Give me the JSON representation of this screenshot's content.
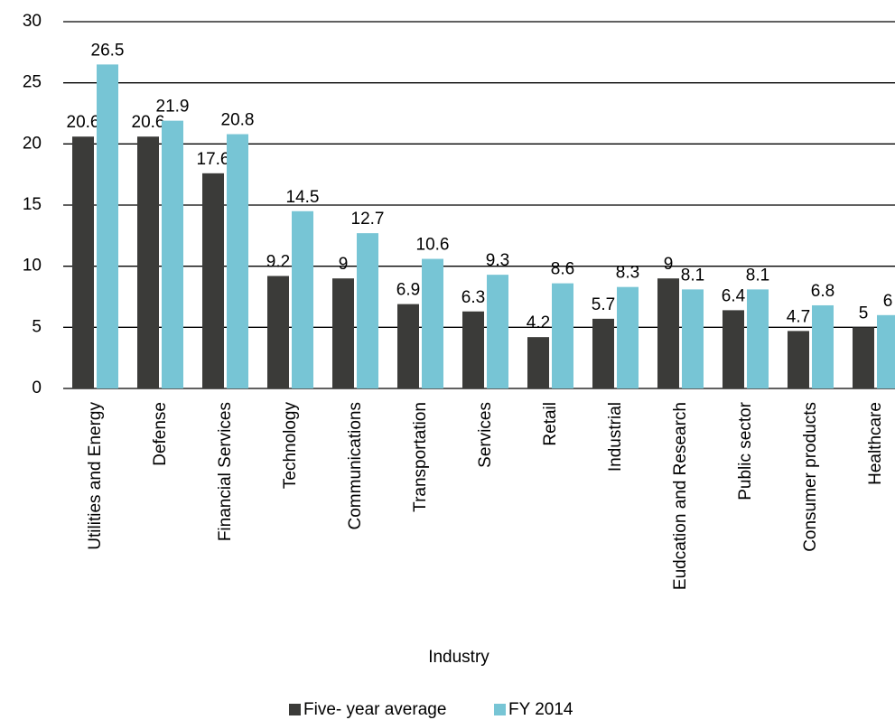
{
  "chart_data": {
    "type": "bar",
    "x_label": "Industry",
    "categories": [
      "Utilities and Energy",
      "Defense",
      "Financial Services",
      "Technology",
      "Communications",
      "Transportation",
      "Services",
      "Retail",
      "Industrial",
      "Eudcation and Research",
      "Public sector",
      "Consumer products",
      "Healthcare"
    ],
    "series": [
      {
        "name": "Five- year average",
        "color": "#3b3b39",
        "values": [
          20.6,
          20.6,
          17.6,
          9.2,
          9,
          6.9,
          6.3,
          4.2,
          5.7,
          9,
          6.4,
          4.7,
          5
        ]
      },
      {
        "name": "FY 2014",
        "color": "#77c5d5",
        "values": [
          26.5,
          21.9,
          20.8,
          14.5,
          12.7,
          10.6,
          9.3,
          8.6,
          8.3,
          8.1,
          8.1,
          6.8,
          6
        ]
      }
    ],
    "ylim": [
      0,
      30
    ],
    "yticks": [
      0,
      5,
      10,
      15,
      20,
      25,
      30
    ],
    "grid": true,
    "legend": "bottom"
  }
}
